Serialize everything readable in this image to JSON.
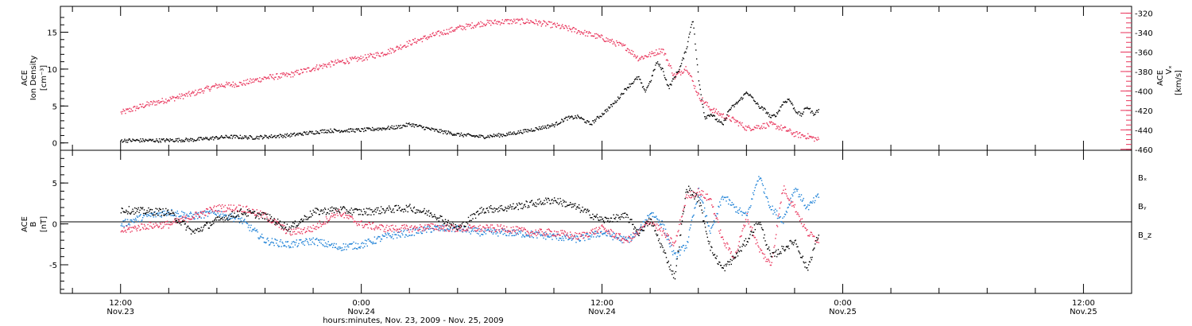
{
  "colors": {
    "black": "#000000",
    "pink": "#e8335a",
    "blue": "#1a7fd6"
  },
  "chart_data": [
    {
      "type": "scatter",
      "panel": "top",
      "left_axis": {
        "label_line1": "ACE",
        "label_line2": "Ion Density",
        "unit": "[cm⁻³]",
        "ticks": [
          0,
          5,
          10,
          15
        ],
        "ylim": [
          -1,
          18.5
        ]
      },
      "right_axis": {
        "label_line1": "ACE",
        "label_line2": "Vₓ",
        "unit": "[km/s]",
        "ticks": [
          -320,
          -340,
          -360,
          -380,
          -400,
          -420,
          -440,
          -460
        ],
        "ylim": [
          -461,
          -313
        ]
      },
      "series": [
        {
          "name": "Ion Density",
          "color": "#000000",
          "axis": "left",
          "x": [
            0,
            3,
            6,
            9,
            11,
            14,
            17,
            20,
            23,
            24,
            26,
            28,
            30,
            32,
            34,
            36,
            37,
            38,
            39,
            40,
            41,
            42,
            43,
            43.5,
            44,
            44.5,
            45,
            45.5,
            46,
            46.5,
            47,
            47.5,
            48,
            48.5,
            49,
            49.5,
            50,
            50.5,
            51,
            51.5,
            52,
            52.5,
            53,
            53.5,
            54,
            54.5,
            55,
            55.5,
            56,
            56.5,
            57,
            57.5,
            58
          ],
          "y": [
            0.4,
            0.4,
            0.5,
            0.9,
            0.8,
            1.1,
            1.7,
            1.8,
            2.2,
            2.6,
            1.8,
            1.2,
            0.9,
            1.2,
            1.8,
            2.5,
            3.4,
            3.6,
            2.6,
            4.0,
            5.5,
            7.5,
            9.0,
            7.0,
            8.5,
            11.0,
            10.0,
            7.5,
            9.0,
            10.5,
            13.0,
            17.0,
            8.5,
            3.5,
            4.0,
            3.2,
            2.5,
            4.5,
            5.2,
            6.0,
            7.0,
            6.0,
            5.0,
            4.5,
            3.5,
            4.0,
            5.5,
            6.0,
            4.5,
            3.8,
            5.0,
            4.0,
            4.5
          ]
        },
        {
          "name": "Vₓ",
          "color": "#e8335a",
          "axis": "right",
          "x": [
            0,
            2,
            4,
            6,
            8,
            10,
            12,
            14,
            16,
            18,
            20,
            22,
            24,
            26,
            28,
            30,
            32,
            34,
            36,
            38,
            40,
            42,
            43,
            44,
            45,
            46,
            47,
            48,
            49,
            50,
            51,
            52,
            53,
            54,
            55,
            56,
            57,
            58
          ],
          "y": [
            -422,
            -414,
            -408,
            -402,
            -394,
            -392,
            -386,
            -383,
            -376,
            -370,
            -366,
            -360,
            -350,
            -342,
            -335,
            -330,
            -328,
            -328,
            -332,
            -338,
            -345,
            -355,
            -366,
            -362,
            -357,
            -385,
            -375,
            -405,
            -418,
            -425,
            -430,
            -438,
            -436,
            -434,
            -438,
            -444,
            -446,
            -450
          ]
        }
      ]
    },
    {
      "type": "scatter",
      "panel": "bottom",
      "left_axis": {
        "label_line1": "ACE",
        "label_line2": "B",
        "unit": "[nT]",
        "ticks": [
          -5,
          0,
          5
        ],
        "ylim": [
          -8.5,
          9
        ]
      },
      "series": [
        {
          "name": "Bₓ",
          "color": "#000000",
          "x": [
            0,
            2,
            4,
            6,
            8,
            10,
            12,
            14,
            16,
            18,
            20,
            22,
            24,
            26,
            28,
            30,
            32,
            34,
            36,
            38,
            40,
            42,
            43,
            44,
            45,
            46,
            47,
            48,
            49,
            50,
            51,
            52,
            53,
            54,
            55,
            56,
            57,
            58
          ],
          "y": [
            1.8,
            1.6,
            1.5,
            -1.0,
            0.5,
            1.5,
            1.0,
            -0.5,
            1.5,
            1.8,
            1.5,
            1.8,
            2.0,
            1.2,
            -0.5,
            1.8,
            2.0,
            2.5,
            3.0,
            2.0,
            0.5,
            1.0,
            -1.0,
            0.5,
            -3.0,
            -6.5,
            4.5,
            3.0,
            -3.0,
            -5.5,
            -4.0,
            -2.0,
            0.5,
            -4.0,
            -3.0,
            -2.0,
            -5.5,
            -1.0
          ]
        },
        {
          "name": "Bᵧ",
          "color": "#1a7fd6",
          "x": [
            0,
            2,
            4,
            6,
            8,
            10,
            12,
            14,
            16,
            18,
            20,
            22,
            24,
            26,
            28,
            30,
            32,
            34,
            36,
            38,
            40,
            42,
            43,
            44,
            45,
            46,
            47,
            48,
            49,
            50,
            51,
            52,
            53,
            54,
            55,
            56,
            57,
            58
          ],
          "y": [
            0.0,
            1.0,
            1.5,
            1.0,
            1.5,
            0.5,
            -2.0,
            -2.5,
            -2.0,
            -2.8,
            -2.5,
            -1.5,
            -1.0,
            -0.5,
            -0.5,
            -1.0,
            -1.0,
            -1.2,
            -1.5,
            -1.8,
            -1.0,
            -2.0,
            -1.0,
            1.5,
            0.0,
            -4.0,
            -2.5,
            4.0,
            -1.0,
            3.5,
            2.0,
            1.0,
            6.0,
            2.0,
            0.5,
            4.5,
            2.0,
            3.5
          ]
        },
        {
          "name": "B_z",
          "color": "#e8335a",
          "x": [
            0,
            2,
            4,
            6,
            8,
            10,
            12,
            14,
            16,
            18,
            20,
            22,
            24,
            26,
            28,
            30,
            32,
            34,
            36,
            38,
            40,
            42,
            43,
            44,
            45,
            46,
            47,
            48,
            49,
            50,
            51,
            52,
            53,
            54,
            55,
            56,
            57,
            58
          ],
          "y": [
            -0.8,
            -0.2,
            0.0,
            1.0,
            2.0,
            2.0,
            1.0,
            -1.0,
            -0.5,
            1.5,
            0.0,
            -0.5,
            -0.5,
            -0.3,
            -0.5,
            -0.5,
            -0.5,
            -1.0,
            -1.0,
            -1.5,
            -0.5,
            -2.0,
            -1.0,
            0.5,
            -1.0,
            -2.5,
            3.5,
            4.0,
            3.0,
            -2.0,
            -4.0,
            1.0,
            -3.0,
            -5.0,
            4.5,
            2.0,
            -1.0,
            -2.0
          ]
        }
      ],
      "legend": [
        "Bₓ",
        "Bᵧ",
        "B_z"
      ]
    }
  ],
  "x_axis": {
    "range_hours": [
      -5,
      84
    ],
    "major_ticks": [
      {
        "x": 0,
        "time": "12:00",
        "date": "Nov.23"
      },
      {
        "x": 20,
        "time": "0:00",
        "date": "Nov.24"
      },
      {
        "x": 40,
        "time": "12:00",
        "date": "Nov.24"
      },
      {
        "x": 60,
        "time": "0:00",
        "date": "Nov.25"
      },
      {
        "x": 80,
        "time": "12:00",
        "date": "Nov.25"
      }
    ],
    "label": "hours:minutes, Nov. 23, 2009 - Nov. 25, 2009"
  }
}
